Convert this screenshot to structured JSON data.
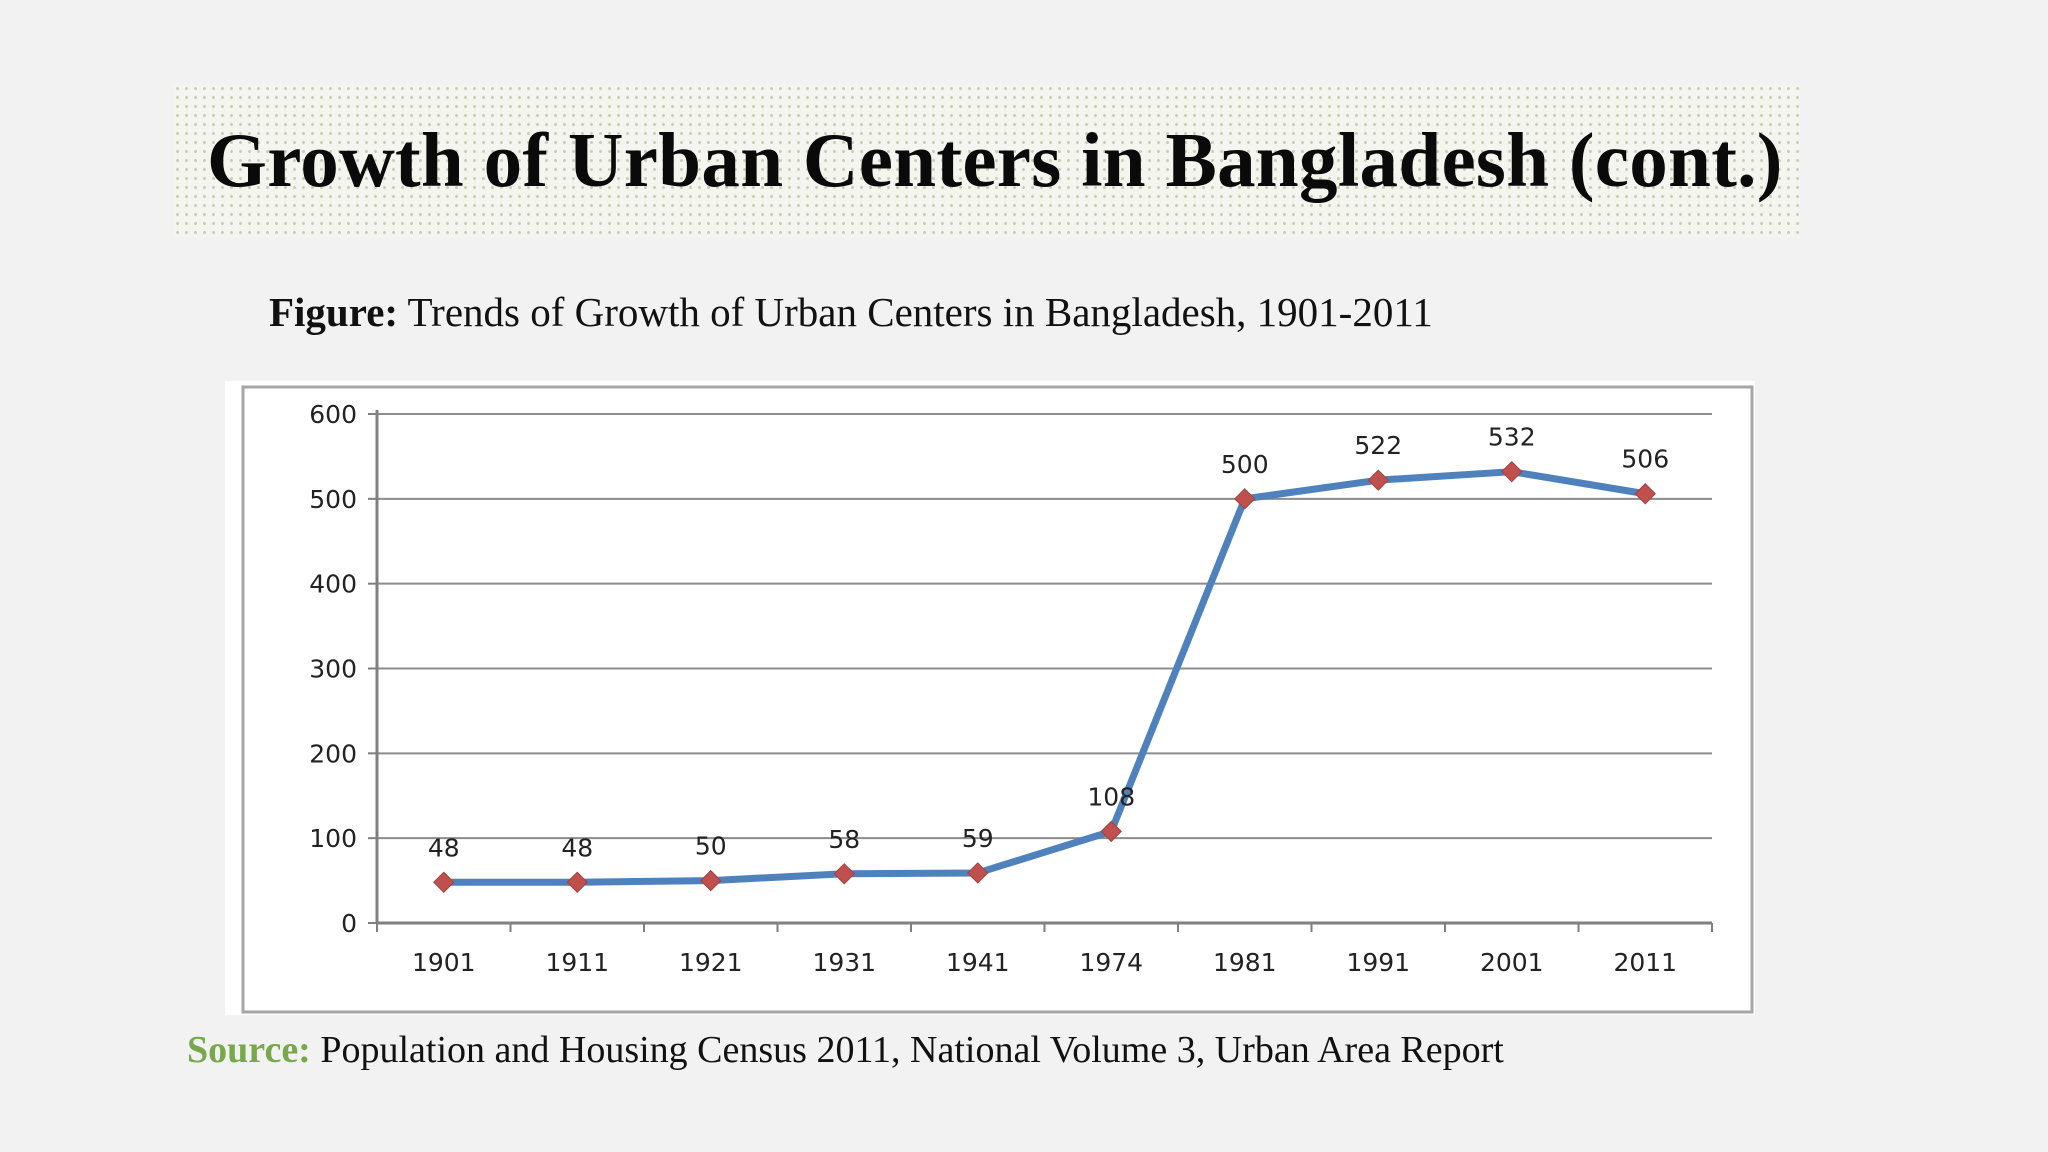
{
  "slide": {
    "title": "Growth of Urban Centers in Bangladesh (cont.)",
    "figure_label": "Figure:",
    "figure_caption": " Trends of Growth of Urban Centers in Bangladesh, 1901-2011",
    "source_label": "Source:",
    "source_text": " Population and Housing Census 2011, National Volume 3, Urban Area Report"
  },
  "colors": {
    "line": "#4f81bd",
    "marker": "#c0504d",
    "source_label": "#77a84a"
  },
  "chart_data": {
    "type": "line",
    "categories": [
      "1901",
      "1911",
      "1921",
      "1931",
      "1941",
      "1974",
      "1981",
      "1991",
      "2001",
      "2011"
    ],
    "series": [
      {
        "values": [
          48,
          48,
          50,
          58,
          59,
          108,
          500,
          522,
          532,
          506
        ]
      }
    ],
    "data_labels": [
      "48",
      "48",
      "50",
      "58",
      "59",
      "108",
      "500",
      "522",
      "532",
      "506"
    ],
    "ylim": [
      0,
      600
    ],
    "yticks": [
      0,
      100,
      200,
      300,
      400,
      500,
      600
    ],
    "ytick_labels": [
      "0",
      "100",
      "200",
      "300",
      "400",
      "500",
      "600"
    ],
    "grid": true,
    "legend": "none",
    "marker": "diamond"
  }
}
